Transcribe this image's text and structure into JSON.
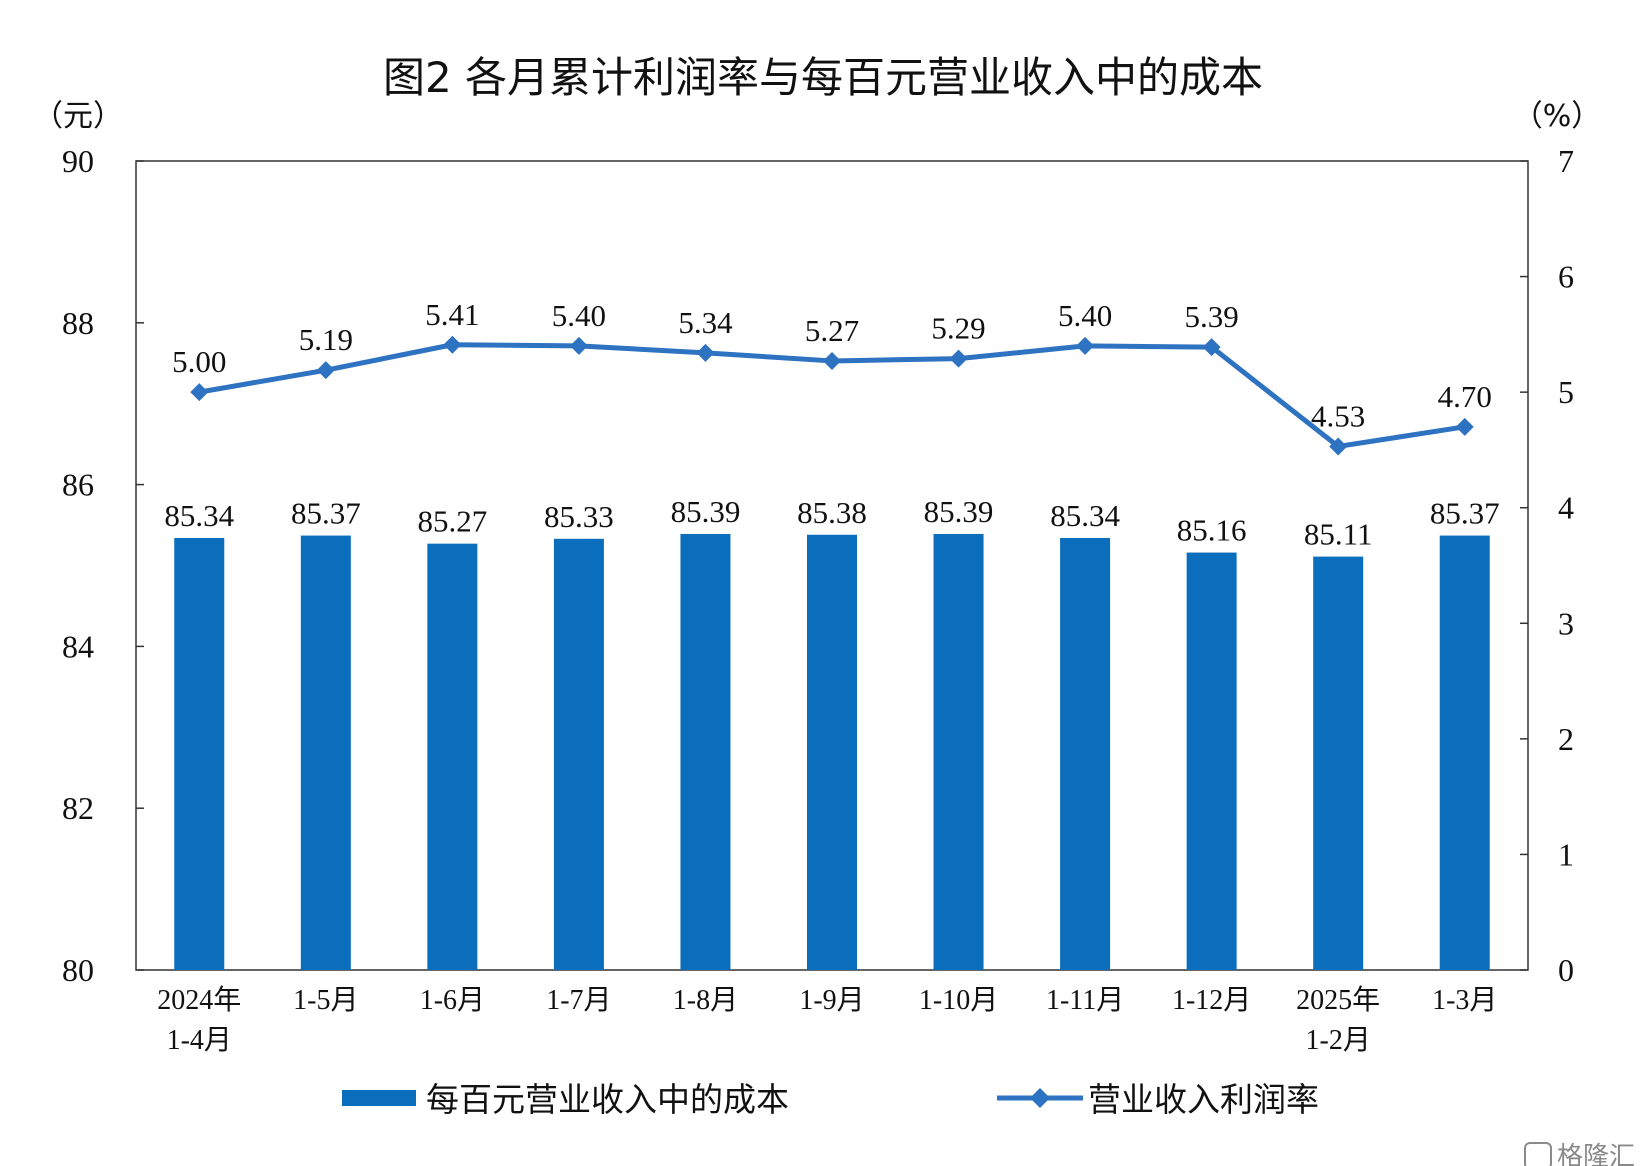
{
  "chart_data": {
    "type": "bar+line",
    "title": "图2  各月累计利润率与每百元营业收入中的成本",
    "left_unit": "（元）",
    "right_unit": "（%）",
    "categories": [
      [
        "2024年",
        "1-4月"
      ],
      [
        "1-5月"
      ],
      [
        "1-6月"
      ],
      [
        "1-7月"
      ],
      [
        "1-8月"
      ],
      [
        "1-9月"
      ],
      [
        "1-10月"
      ],
      [
        "1-11月"
      ],
      [
        "1-12月"
      ],
      [
        "2025年",
        "1-2月"
      ],
      [
        "1-3月"
      ]
    ],
    "series": [
      {
        "name": "每百元营业收入中的成本",
        "type": "bar",
        "axis": "left",
        "color": "#0a6ebd",
        "values": [
          85.34,
          85.37,
          85.27,
          85.33,
          85.39,
          85.38,
          85.39,
          85.34,
          85.16,
          85.11,
          85.37
        ],
        "labels": [
          "85.34",
          "85.37",
          "85.27",
          "85.33",
          "85.39",
          "85.38",
          "85.39",
          "85.34",
          "85.16",
          "85.11",
          "85.37"
        ]
      },
      {
        "name": "营业收入利润率",
        "type": "line",
        "axis": "right",
        "color": "#2e72c2",
        "marker": "diamond",
        "values": [
          5.0,
          5.19,
          5.41,
          5.4,
          5.34,
          5.27,
          5.29,
          5.4,
          5.39,
          4.53,
          4.7
        ],
        "labels": [
          "5.00",
          "5.19",
          "5.41",
          "5.40",
          "5.34",
          "5.27",
          "5.29",
          "5.40",
          "5.39",
          "4.53",
          "4.70"
        ]
      }
    ],
    "y_left": {
      "min": 80,
      "max": 90,
      "ticks": [
        "80",
        "82",
        "84",
        "86",
        "88",
        "90"
      ]
    },
    "y_right": {
      "min": 0,
      "max": 7,
      "ticks": [
        "0",
        "1",
        "2",
        "3",
        "4",
        "5",
        "6",
        "7"
      ]
    },
    "grid": false,
    "legend_position": "bottom"
  },
  "watermark": "格隆汇"
}
